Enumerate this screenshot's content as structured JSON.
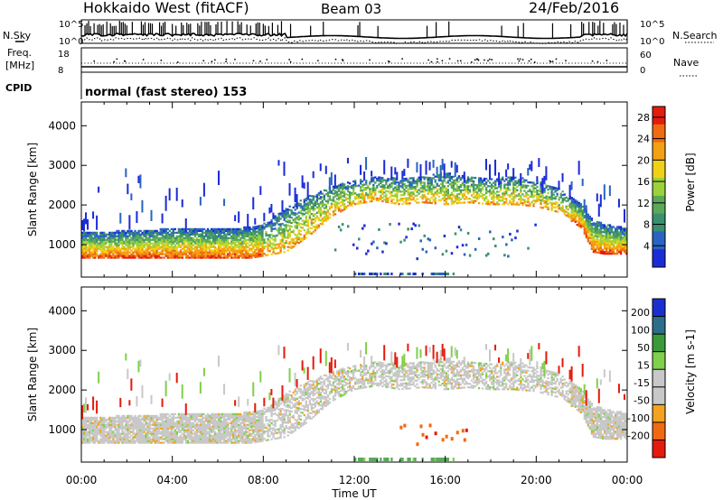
{
  "header": {
    "station": "Hokkaido West (fitACF)",
    "beam": "Beam 03",
    "date": "24/Feb/2016"
  },
  "summary": {
    "nsky_label": "N.Sky",
    "nsearch_label": "N.Search",
    "freq_label_line1": "Freq.",
    "freq_label_line2": "[MHz]",
    "nave_label": "Nave",
    "cpid_label": "CPID",
    "cpid_value": "normal (fast stereo) 153",
    "noise_left_ticks": [
      "10^5",
      "10^0"
    ],
    "noise_right_ticks": [
      "10^5",
      "10^0"
    ],
    "freq_ticks": [
      "18",
      "8"
    ],
    "nave_ticks": [
      "60",
      "0"
    ]
  },
  "colors": {
    "power_scale": [
      "#1b2bd8",
      "#2a63c2",
      "#3a8f6f",
      "#5aa85a",
      "#9bd23a",
      "#f1d116",
      "#f2a114",
      "#f06a12",
      "#e51b0c"
    ],
    "velocity_scale": [
      "#1a2fd0",
      "#2a6e8a",
      "#3a9a3a",
      "#7fd04a",
      "#c8c8c8",
      "#c8c8c8",
      "#f4a320",
      "#f06a12",
      "#e51b0c"
    ]
  },
  "chart_data": [
    {
      "type": "heatmap",
      "panel": "power",
      "xlabel": "",
      "ylabel": "Slant Range [km]",
      "x_ticks": [
        "00:00",
        "04:00",
        "08:00",
        "12:00",
        "16:00",
        "20:00",
        "00:00"
      ],
      "x_range_hours": [
        0,
        24
      ],
      "y_ticks": [
        1000,
        2000,
        3000,
        4000
      ],
      "ylim": [
        180,
        4600
      ],
      "colorbar_label": "Power [dB]",
      "colorbar_ticks": [
        4,
        8,
        12,
        16,
        20,
        24,
        28
      ],
      "colorbar_range": [
        0,
        30
      ],
      "band_hours": [
        0,
        1,
        2,
        3,
        4,
        5,
        6,
        7,
        7.5,
        8,
        9,
        10,
        11,
        12,
        13,
        14,
        15,
        16,
        17,
        18,
        19,
        20,
        21,
        22,
        22.5,
        23,
        24
      ],
      "band_lower_km": [
        650,
        650,
        650,
        650,
        650,
        650,
        650,
        650,
        650,
        700,
        800,
        1200,
        1700,
        2000,
        2100,
        2000,
        2050,
        2000,
        2050,
        2000,
        2000,
        1950,
        1800,
        1400,
        800,
        750,
        750
      ],
      "band_upper_km": [
        1300,
        1300,
        1350,
        1350,
        1400,
        1400,
        1400,
        1400,
        1450,
        1500,
        1900,
        2200,
        2450,
        2600,
        2700,
        2650,
        2700,
        2800,
        2700,
        2650,
        2700,
        2600,
        2400,
        2000,
        1600,
        1500,
        1400
      ]
    },
    {
      "type": "heatmap",
      "panel": "velocity",
      "xlabel": "Time UT",
      "ylabel": "Slant Range [km]",
      "x_ticks": [
        "00:00",
        "04:00",
        "08:00",
        "12:00",
        "16:00",
        "20:00",
        "00:00"
      ],
      "x_range_hours": [
        0,
        24
      ],
      "y_ticks": [
        1000,
        2000,
        3000,
        4000
      ],
      "ylim": [
        180,
        4600
      ],
      "colorbar_label": "Velocity [m s-1]",
      "colorbar_ticks": [
        200,
        100,
        50,
        15,
        -15,
        -50,
        -100,
        -200
      ],
      "colorbar_range": [
        -250,
        250
      ]
    }
  ]
}
